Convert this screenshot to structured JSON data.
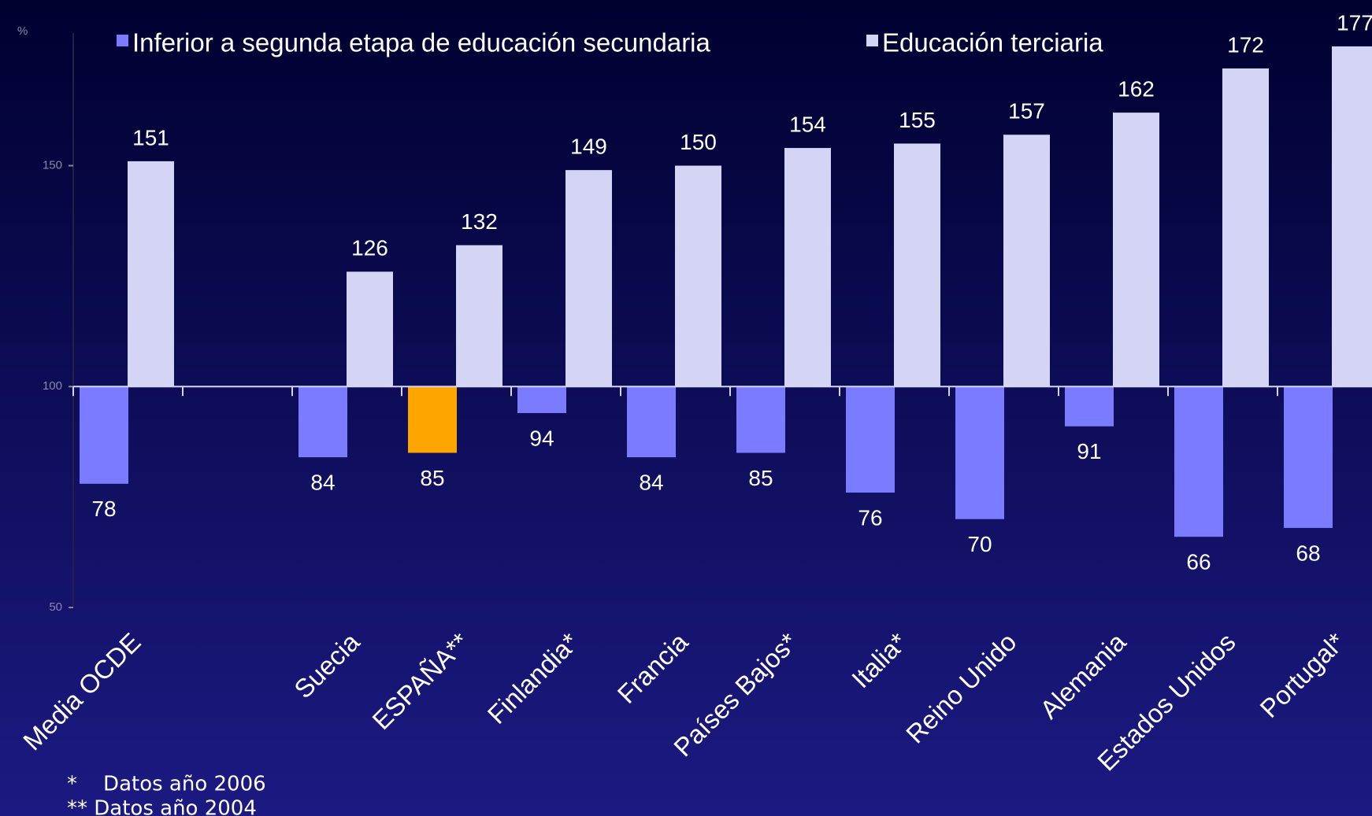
{
  "chart_data": {
    "type": "bar",
    "y_label": "%",
    "categories": [
      "Media OCDE",
      null,
      "Suecia",
      "ESPAÑA**",
      "Finlandia*",
      "Francia",
      "Países Bajos*",
      "Italia*",
      "Reino Unido",
      "Alemania",
      "Estados Unidos",
      "Portugal*"
    ],
    "series": [
      {
        "name": "Inferior a segunda etapa de educación secundaria",
        "color": "#7b7bff",
        "values": [
          78,
          null,
          84,
          85,
          94,
          84,
          85,
          76,
          70,
          91,
          66,
          68
        ]
      },
      {
        "name": "Educación terciaria",
        "color": "#d4d4f4",
        "values": [
          151,
          null,
          126,
          132,
          149,
          150,
          154,
          155,
          157,
          162,
          172,
          177
        ]
      }
    ],
    "highlight_index": 3,
    "highlight_color": "#ffa500",
    "baseline": 100,
    "ylim": [
      50,
      185
    ],
    "yticks": [
      50,
      100,
      150
    ],
    "footnotes": [
      "*    Datos año 2006",
      "** Datos año 2004"
    ]
  }
}
